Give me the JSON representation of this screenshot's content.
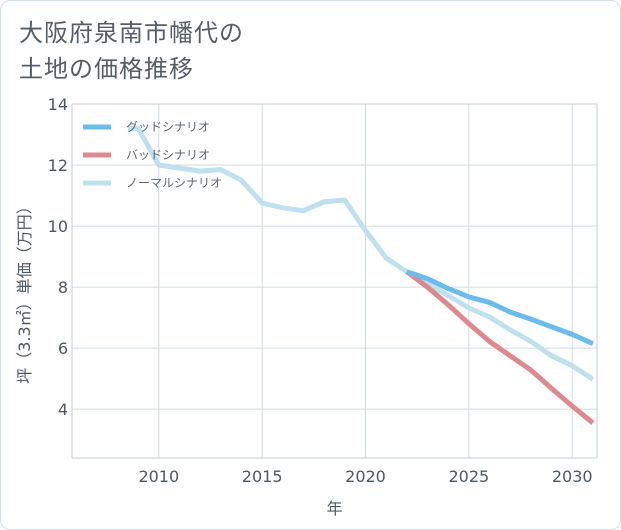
{
  "title": {
    "line1": "大阪府泉南市幡代の",
    "line2": "土地の価格推移"
  },
  "colors": {
    "good": "#6bbbeb",
    "bad": "#dc8a90",
    "normal": "#bfe0ee",
    "grid": "#d3dbe2",
    "axis": "#c3cdd5"
  },
  "chart_data": {
    "type": "line",
    "xlabel": "年",
    "ylabel": "坪（3.3㎡）単価（万円）",
    "xlim": [
      2005.8,
      2031.2
    ],
    "ylim": [
      2.4,
      14
    ],
    "xticks": [
      2010,
      2015,
      2020,
      2025,
      2030
    ],
    "yticks": [
      4,
      6,
      8,
      10,
      12,
      14
    ],
    "grid": true,
    "legend_position": "top-left",
    "series": [
      {
        "key": "good",
        "name": "グッドシナリオ",
        "x": [
          2022,
          2023,
          2024,
          2025,
          2026,
          2027,
          2028,
          2029,
          2030,
          2031
        ],
        "y": [
          8.5,
          8.28,
          7.95,
          7.68,
          7.5,
          7.18,
          6.95,
          6.7,
          6.45,
          6.15
        ]
      },
      {
        "key": "bad",
        "name": "バッドシナリオ",
        "x": [
          2022,
          2023,
          2024,
          2025,
          2026,
          2027,
          2028,
          2029,
          2030,
          2031
        ],
        "y": [
          8.5,
          8.0,
          7.42,
          6.8,
          6.22,
          5.75,
          5.28,
          4.68,
          4.1,
          3.55
        ]
      },
      {
        "key": "normal",
        "name": "ノーマルシナリオ",
        "x": [
          2008.5,
          2009,
          2010,
          2011,
          2012,
          2013,
          2014,
          2015,
          2016,
          2017,
          2018,
          2019,
          2020,
          2021,
          2022,
          2023,
          2024,
          2025,
          2026,
          2027,
          2028,
          2029,
          2030,
          2031
        ],
        "y": [
          13.2,
          13.2,
          12.0,
          11.9,
          11.8,
          11.85,
          11.5,
          10.75,
          10.6,
          10.5,
          10.8,
          10.85,
          9.85,
          8.95,
          8.5,
          8.12,
          7.72,
          7.32,
          7.02,
          6.6,
          6.22,
          5.75,
          5.42,
          4.98
        ]
      }
    ]
  }
}
